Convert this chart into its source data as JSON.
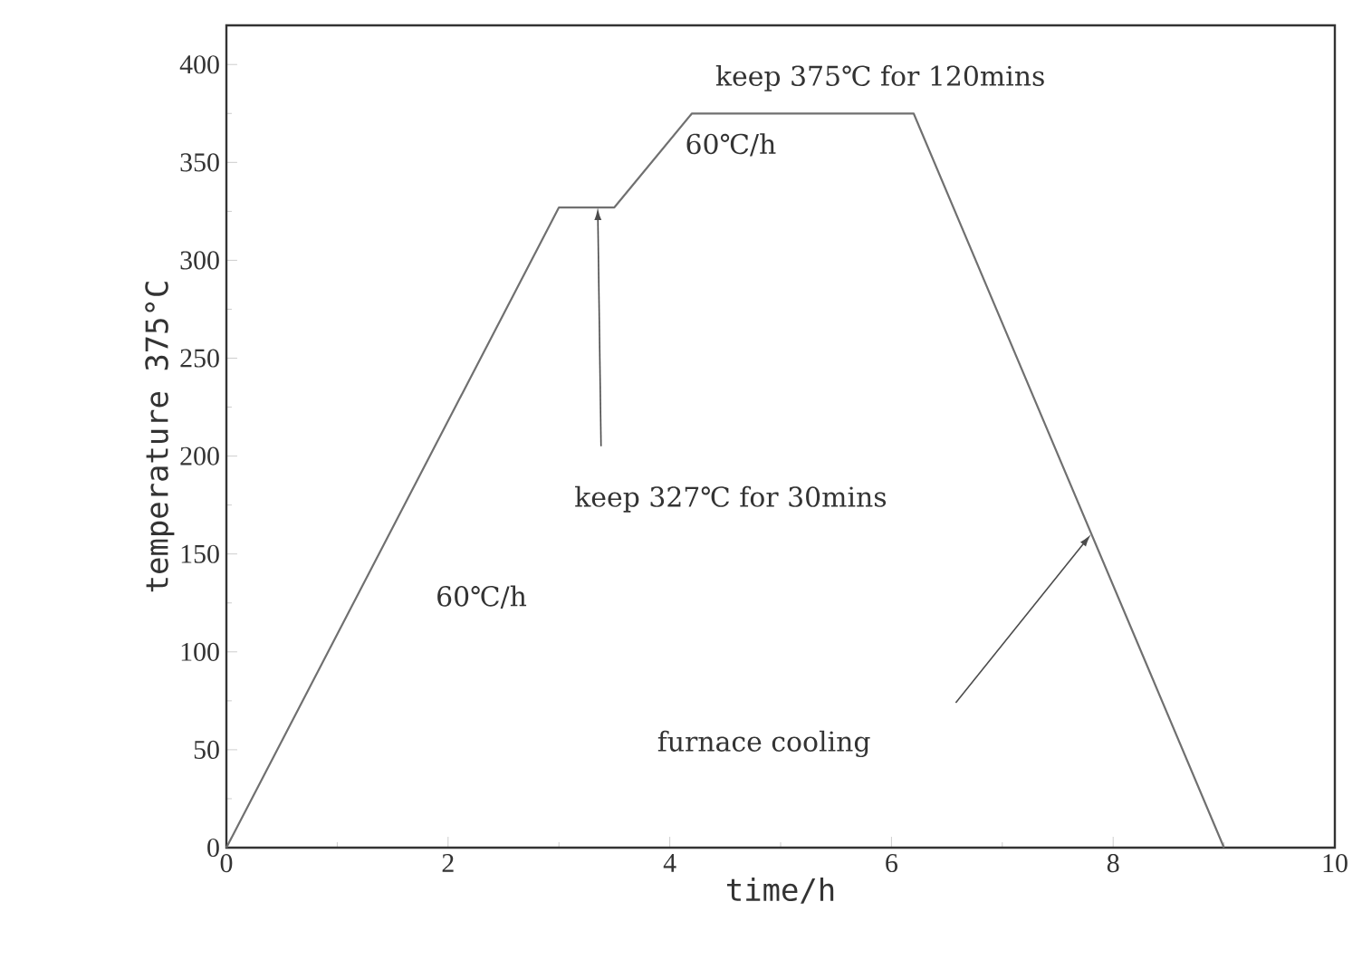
{
  "chart_data": {
    "type": "line",
    "xlabel": "time/h",
    "ylabel": "temperature 375°C",
    "x": [
      0,
      3.0,
      3.5,
      4.2,
      6.2,
      9.0
    ],
    "values": [
      0,
      327,
      327,
      375,
      375,
      0
    ],
    "color": "#707070",
    "xlim": [
      0,
      10
    ],
    "ylim": [
      0,
      420
    ],
    "xticks": [
      0,
      2,
      4,
      6,
      8,
      10
    ],
    "yticks": [
      0,
      50,
      100,
      150,
      200,
      250,
      300,
      350,
      400
    ],
    "grid": false,
    "marker": "none",
    "line_style": "solid",
    "annotations": [
      "keep 375℃ for 120mins",
      "60℃/h",
      "keep 327℃ for 30mins",
      "60℃/h",
      "furnace cooling"
    ]
  }
}
